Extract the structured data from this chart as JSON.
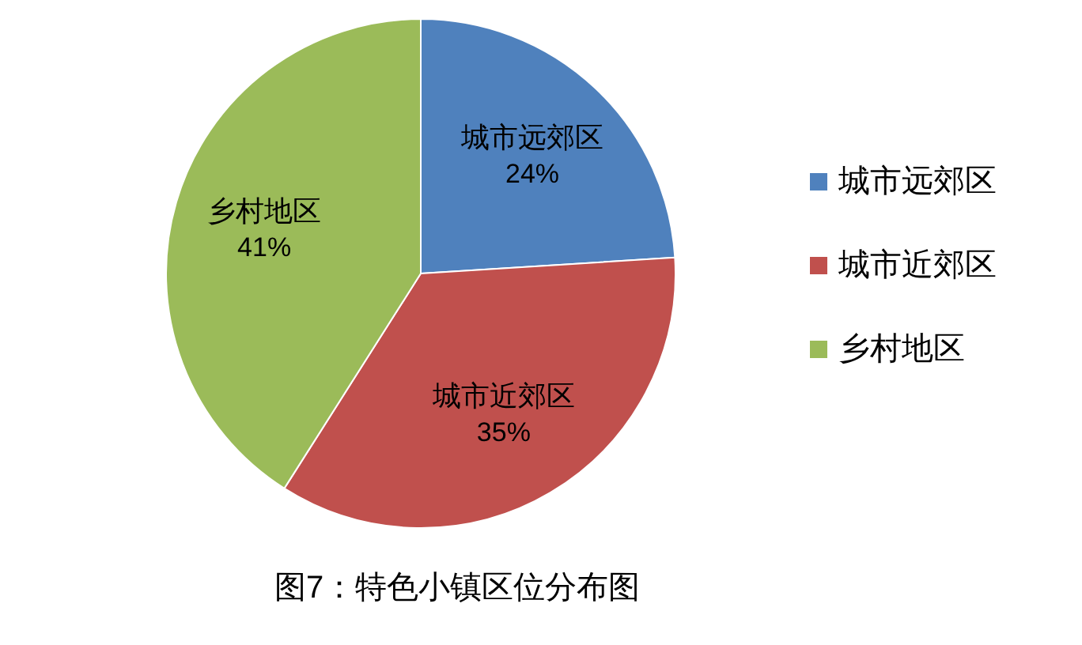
{
  "chart_data": {
    "type": "pie",
    "title": "图7：特色小镇区位分布图",
    "categories": [
      "城市远郊区",
      "城市近郊区",
      "乡村地区"
    ],
    "values": [
      24,
      35,
      41
    ],
    "colors": [
      "#4f81bd",
      "#c0504d",
      "#9bbb59"
    ],
    "value_labels": [
      "24%",
      "35%",
      "41%"
    ],
    "legend": "right"
  }
}
